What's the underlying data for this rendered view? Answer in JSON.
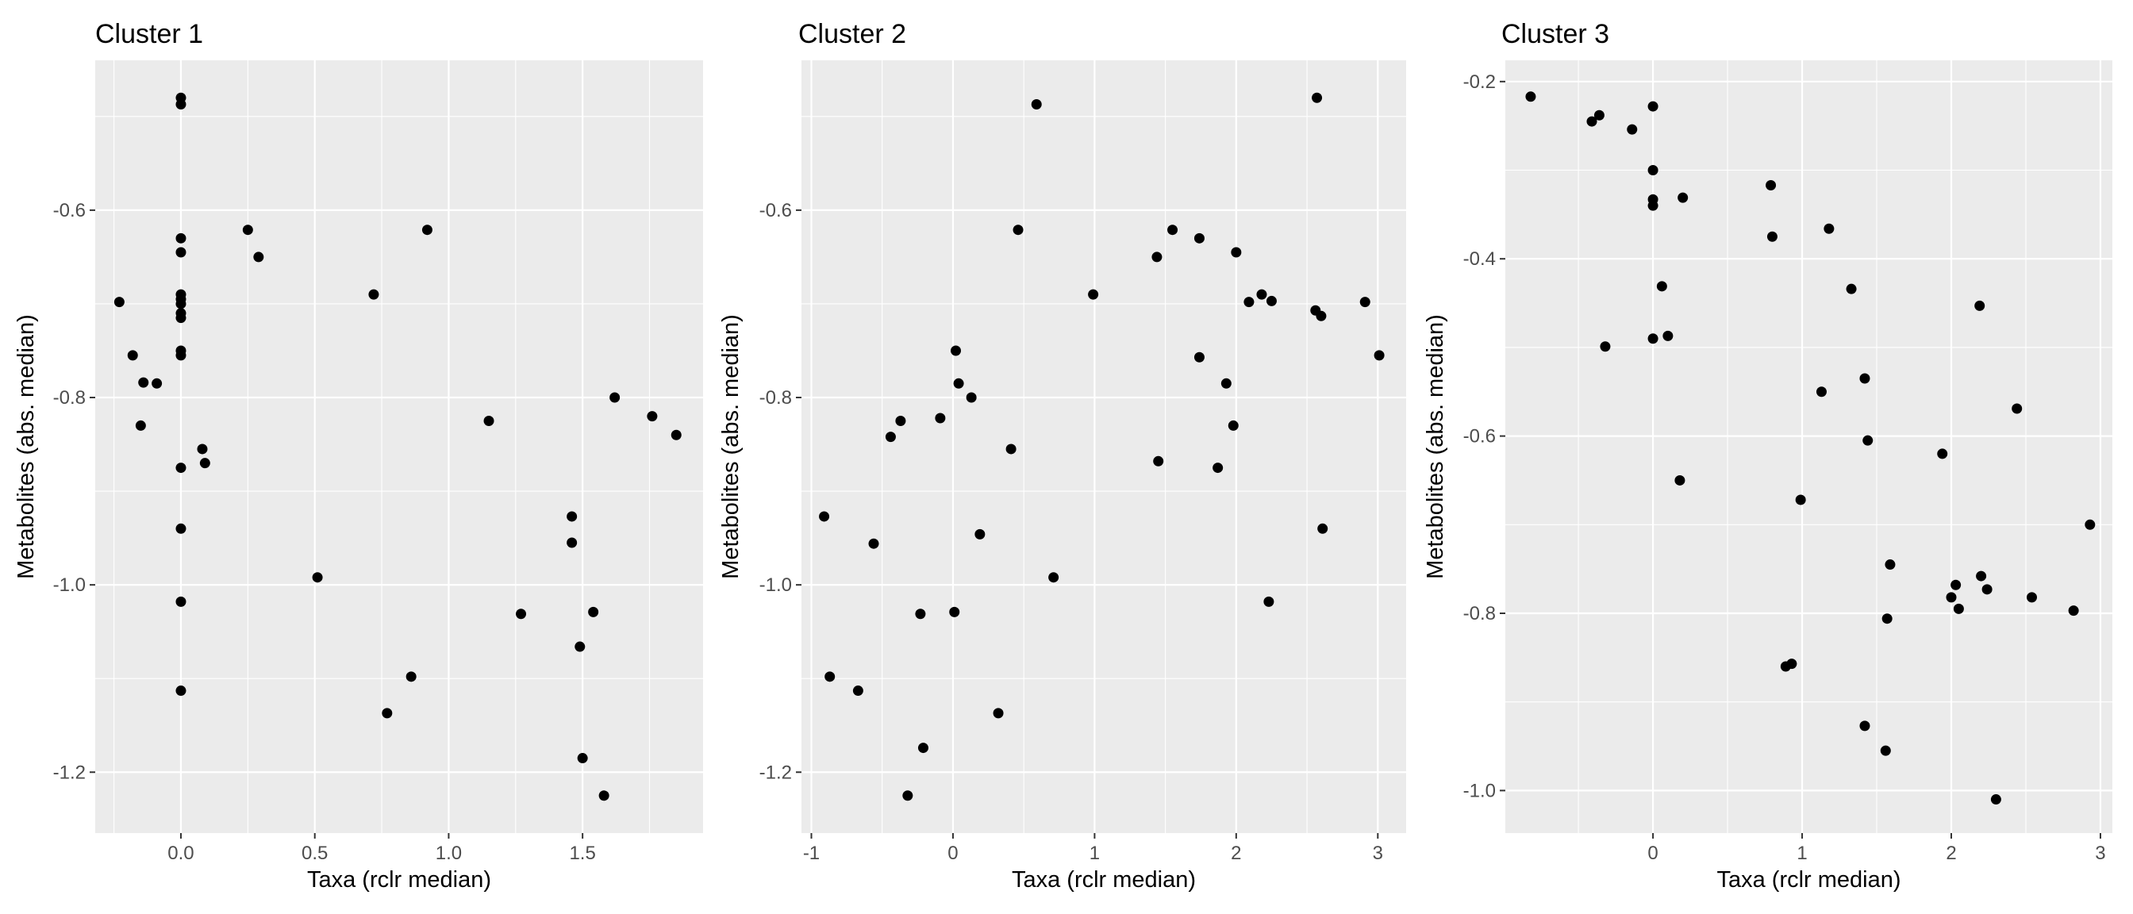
{
  "chart_data": [
    {
      "type": "scatter",
      "title": "Cluster 1",
      "xlabel": "Taxa (rclr median)",
      "ylabel": "Metabolites (abs. median)",
      "xlim": [
        -0.32,
        1.95
      ],
      "ylim": [
        -1.265,
        -0.44
      ],
      "xticks": [
        0.0,
        0.5,
        1.0,
        1.5
      ],
      "xtick_labels": [
        "0.0",
        "0.5",
        "1.0",
        "1.5"
      ],
      "yticks": [
        -1.2,
        -1.0,
        -0.8,
        -0.6
      ],
      "ytick_labels": [
        "-1.2",
        "-1.0",
        "-0.8",
        "-0.6"
      ],
      "grid": true,
      "legend": "none",
      "points": [
        [
          0,
          -0.48
        ],
        [
          0,
          -0.487
        ],
        [
          0,
          -0.63
        ],
        [
          0,
          -0.645
        ],
        [
          0,
          -0.69
        ],
        [
          0,
          -0.695
        ],
        [
          0,
          -0.7
        ],
        [
          0,
          -0.71
        ],
        [
          0,
          -0.715
        ],
        [
          0,
          -0.75
        ],
        [
          0,
          -0.755
        ],
        [
          0,
          -0.875
        ],
        [
          0,
          -0.94
        ],
        [
          0,
          -1.018
        ],
        [
          0,
          -1.113
        ],
        [
          -0.23,
          -0.698
        ],
        [
          -0.18,
          -0.755
        ],
        [
          -0.14,
          -0.784
        ],
        [
          -0.09,
          -0.785
        ],
        [
          -0.15,
          -0.83
        ],
        [
          0.25,
          -0.621
        ],
        [
          0.29,
          -0.65
        ],
        [
          0.08,
          -0.855
        ],
        [
          0.09,
          -0.87
        ],
        [
          0.51,
          -0.992
        ],
        [
          0.72,
          -0.69
        ],
        [
          0.77,
          -1.137
        ],
        [
          0.86,
          -1.098
        ],
        [
          0.92,
          -0.621
        ],
        [
          1.15,
          -0.825
        ],
        [
          1.27,
          -1.031
        ],
        [
          1.46,
          -0.927
        ],
        [
          1.46,
          -0.955
        ],
        [
          1.49,
          -1.066
        ],
        [
          1.5,
          -1.185
        ],
        [
          1.54,
          -1.029
        ],
        [
          1.58,
          -1.225
        ],
        [
          1.62,
          -0.8
        ],
        [
          1.76,
          -0.82
        ],
        [
          1.85,
          -0.84
        ]
      ]
    },
    {
      "type": "scatter",
      "title": "Cluster 2",
      "xlabel": "Taxa (rclr median)",
      "ylabel": "Metabolites (abs. median)",
      "xlim": [
        -1.07,
        3.2
      ],
      "ylim": [
        -1.265,
        -0.44
      ],
      "xticks": [
        -1,
        0,
        1,
        2,
        3
      ],
      "xtick_labels": [
        "-1",
        "0",
        "1",
        "2",
        "3"
      ],
      "yticks": [
        -1.2,
        -1.0,
        -0.8,
        -0.6
      ],
      "ytick_labels": [
        "-1.2",
        "-1.0",
        "-0.8",
        "-0.6"
      ],
      "grid": true,
      "legend": "none",
      "points": [
        [
          -0.91,
          -0.927
        ],
        [
          -0.87,
          -1.098
        ],
        [
          -0.67,
          -1.113
        ],
        [
          -0.56,
          -0.956
        ],
        [
          -0.44,
          -0.842
        ],
        [
          -0.37,
          -0.825
        ],
        [
          -0.32,
          -1.225
        ],
        [
          -0.23,
          -1.031
        ],
        [
          -0.21,
          -1.174
        ],
        [
          -0.09,
          -0.822
        ],
        [
          0.01,
          -1.029
        ],
        [
          0.02,
          -0.75
        ],
        [
          0.04,
          -0.785
        ],
        [
          0.13,
          -0.8
        ],
        [
          0.19,
          -0.946
        ],
        [
          0.32,
          -1.137
        ],
        [
          0.41,
          -0.855
        ],
        [
          0.46,
          -0.621
        ],
        [
          0.59,
          -0.487
        ],
        [
          0.71,
          -0.992
        ],
        [
          0.99,
          -0.69
        ],
        [
          1.44,
          -0.65
        ],
        [
          1.45,
          -0.868
        ],
        [
          1.55,
          -0.621
        ],
        [
          1.74,
          -0.63
        ],
        [
          1.74,
          -0.757
        ],
        [
          1.87,
          -0.875
        ],
        [
          1.93,
          -0.785
        ],
        [
          1.98,
          -0.83
        ],
        [
          2.0,
          -0.645
        ],
        [
          2.09,
          -0.698
        ],
        [
          2.18,
          -0.69
        ],
        [
          2.23,
          -1.018
        ],
        [
          2.25,
          -0.697
        ],
        [
          2.56,
          -0.707
        ],
        [
          2.57,
          -0.48
        ],
        [
          2.6,
          -0.713
        ],
        [
          2.61,
          -0.94
        ],
        [
          2.91,
          -0.698
        ],
        [
          3.01,
          -0.755
        ]
      ]
    },
    {
      "type": "scatter",
      "title": "Cluster 3",
      "xlabel": "Taxa (rclr median)",
      "ylabel": "Metabolites (abs. median)",
      "xlim": [
        -0.99,
        3.08
      ],
      "ylim": [
        -1.048,
        -0.176
      ],
      "xticks": [
        0,
        1,
        2,
        3
      ],
      "xtick_labels": [
        "0",
        "1",
        "2",
        "3"
      ],
      "yticks": [
        -1.0,
        -0.8,
        -0.6,
        -0.4,
        -0.2
      ],
      "ytick_labels": [
        "-1.0",
        "-0.8",
        "-0.6",
        "-0.4",
        "-0.2"
      ],
      "grid": true,
      "legend": "none",
      "points": [
        [
          -0.82,
          -0.217
        ],
        [
          -0.41,
          -0.245
        ],
        [
          -0.36,
          -0.238
        ],
        [
          -0.32,
          -0.499
        ],
        [
          -0.14,
          -0.254
        ],
        [
          0.0,
          -0.228
        ],
        [
          0.0,
          -0.3
        ],
        [
          0.0,
          -0.333
        ],
        [
          0.0,
          -0.34
        ],
        [
          0.0,
          -0.49
        ],
        [
          0.06,
          -0.431
        ],
        [
          0.1,
          -0.487
        ],
        [
          0.18,
          -0.65
        ],
        [
          0.2,
          -0.331
        ],
        [
          0.79,
          -0.317
        ],
        [
          0.8,
          -0.375
        ],
        [
          0.89,
          -0.86
        ],
        [
          0.93,
          -0.857
        ],
        [
          0.99,
          -0.672
        ],
        [
          1.13,
          -0.55
        ],
        [
          1.18,
          -0.366
        ],
        [
          1.33,
          -0.434
        ],
        [
          1.42,
          -0.535
        ],
        [
          1.42,
          -0.927
        ],
        [
          1.44,
          -0.605
        ],
        [
          1.56,
          -0.955
        ],
        [
          1.57,
          -0.806
        ],
        [
          1.59,
          -0.745
        ],
        [
          1.94,
          -0.62
        ],
        [
          2.0,
          -0.782
        ],
        [
          2.03,
          -0.768
        ],
        [
          2.05,
          -0.795
        ],
        [
          2.19,
          -0.453
        ],
        [
          2.2,
          -0.758
        ],
        [
          2.24,
          -0.773
        ],
        [
          2.3,
          -1.01
        ],
        [
          2.44,
          -0.569
        ],
        [
          2.54,
          -0.782
        ],
        [
          2.82,
          -0.797
        ],
        [
          2.93,
          -0.7
        ]
      ]
    }
  ]
}
